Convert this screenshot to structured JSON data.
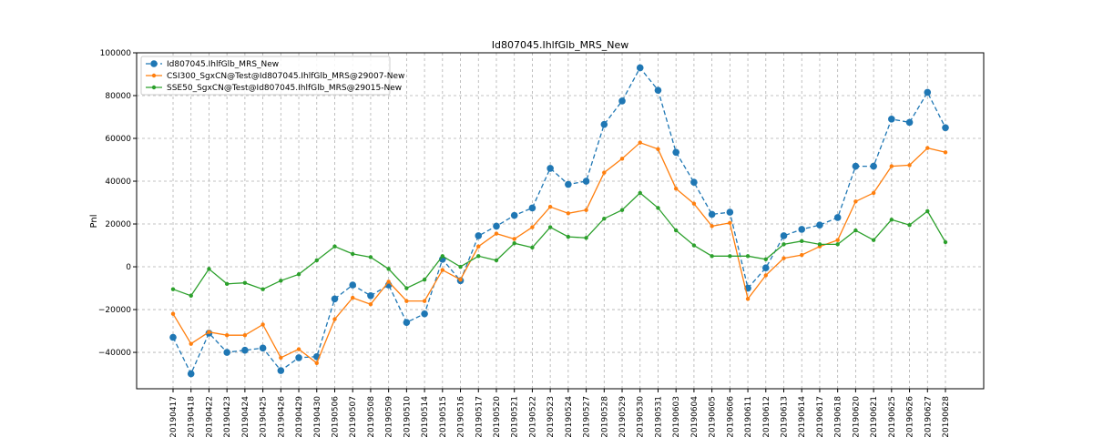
{
  "chart_data": {
    "type": "line",
    "title": "Id807045.IhlfGlb_MRS_New",
    "xlabel": "",
    "ylabel": "Pnl",
    "ylim": [
      -57000,
      100000
    ],
    "yticks": [
      -40000,
      -20000,
      0,
      20000,
      40000,
      60000,
      80000,
      100000
    ],
    "grid": true,
    "legend_position": "top-left",
    "categories": [
      "20190417",
      "20190418",
      "20190422",
      "20190423",
      "20190424",
      "20190425",
      "20190426",
      "20190429",
      "20190430",
      "20190506",
      "20190507",
      "20190508",
      "20190509",
      "20190510",
      "20190514",
      "20190515",
      "20190516",
      "20190517",
      "20190520",
      "20190521",
      "20190522",
      "20190523",
      "20190524",
      "20190527",
      "20190528",
      "20190529",
      "20190530",
      "20190531",
      "20190603",
      "20190604",
      "20190605",
      "20190606",
      "20190611",
      "20190612",
      "20190613",
      "20190614",
      "20190617",
      "20190618",
      "20190620",
      "20190621",
      "20190625",
      "20190626",
      "20190627",
      "20190628"
    ],
    "series": [
      {
        "name": "Id807045.IhlfGlb_MRS_New",
        "color": "#1f77b4",
        "style": "dashed-large-dots",
        "values": [
          -33000,
          -50000,
          -31000,
          -40000,
          -39000,
          -38000,
          -48500,
          -42500,
          -42000,
          -15000,
          -8500,
          -13500,
          -8500,
          -26000,
          -22000,
          3500,
          -6500,
          14500,
          19000,
          24000,
          27500,
          46000,
          38500,
          40000,
          66500,
          77500,
          93000,
          82500,
          53500,
          39500,
          24500,
          25500,
          -10000,
          -500,
          14500,
          17500,
          19500,
          23000,
          47000,
          47000,
          69000,
          67500,
          81500,
          65000
        ]
      },
      {
        "name": "CSI300_SgxCN@Test@Id807045.IhlfGlb_MRS@29007-New",
        "color": "#ff7f0e",
        "style": "solid-small-dots",
        "values": [
          -22000,
          -36000,
          -30500,
          -32000,
          -32000,
          -27000,
          -42500,
          -38500,
          -45000,
          -24500,
          -14500,
          -17500,
          -7000,
          -16000,
          -16000,
          -1500,
          -6000,
          9500,
          15500,
          13000,
          18500,
          28000,
          25000,
          26500,
          44000,
          50500,
          58000,
          55000,
          36500,
          29500,
          19000,
          20500,
          -15000,
          -4000,
          4000,
          5500,
          9500,
          12500,
          30500,
          34500,
          47000,
          47500,
          55500,
          53500
        ]
      },
      {
        "name": "SSE50_SgxCN@Test@Id807045.IhlfGlb_MRS@29015-New",
        "color": "#2ca02c",
        "style": "solid-small-dots",
        "values": [
          -10500,
          -13500,
          -1000,
          -8000,
          -7500,
          -10500,
          -6500,
          -3500,
          3000,
          9500,
          6000,
          4500,
          -1000,
          -10000,
          -6000,
          5000,
          0,
          5000,
          3000,
          11000,
          9000,
          18500,
          14000,
          13500,
          22500,
          26500,
          34500,
          27500,
          17000,
          10000,
          5000,
          5000,
          5000,
          3500,
          10500,
          12000,
          10500,
          10500,
          17000,
          12500,
          22000,
          19500,
          26000,
          11500
        ]
      }
    ]
  }
}
